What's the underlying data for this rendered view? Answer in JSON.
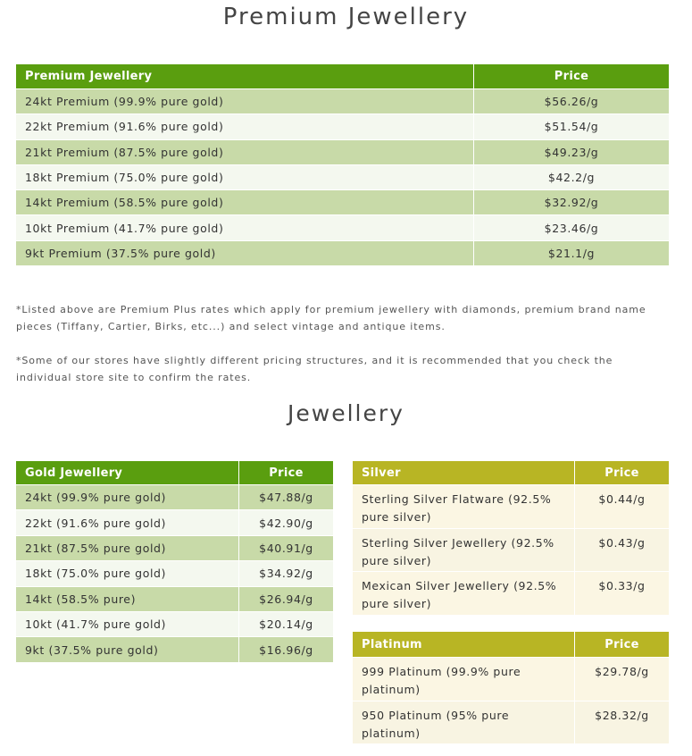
{
  "premium": {
    "title": "Premium Jewellery",
    "table": {
      "header": [
        "Premium Jewellery",
        "Price"
      ],
      "rows": [
        [
          "24kt Premium (99.9% pure gold)",
          "$56.26/g"
        ],
        [
          "22kt Premium (91.6% pure gold)",
          "$51.54/g"
        ],
        [
          "21kt Premium (87.5% pure gold)",
          "$49.23/g"
        ],
        [
          "18kt Premium (75.0% pure gold)",
          "$42.2/g"
        ],
        [
          "14kt Premium (58.5% pure gold)",
          "$32.92/g"
        ],
        [
          "10kt Premium (41.7% pure gold)",
          "$23.46/g"
        ],
        [
          "9kt Premium (37.5% pure gold)",
          "$21.1/g"
        ]
      ]
    }
  },
  "notes": [
    "*Listed above are Premium Plus rates which apply for premium jewellery with diamonds, premium brand name pieces (Tiffany, Cartier, Birks, etc...) and select vintage and antique items.",
    "*Some of our stores have slightly different pricing structures, and it is recommended that you check the individual store site to confirm the rates."
  ],
  "jewellery": {
    "title": "Jewellery",
    "gold": {
      "header": [
        "Gold Jewellery",
        "Price"
      ],
      "rows": [
        [
          "24kt (99.9% pure gold)",
          "$47.88/g"
        ],
        [
          "22kt (91.6% pure gold)",
          "$42.90/g"
        ],
        [
          "21kt (87.5% pure gold)",
          "$40.91/g"
        ],
        [
          "18kt (75.0% pure gold)",
          "$34.92/g"
        ],
        [
          "14kt (58.5% pure)",
          "$26.94/g"
        ],
        [
          "10kt (41.7% pure gold)",
          "$20.14/g"
        ],
        [
          "9kt (37.5% pure gold)",
          "$16.96/g"
        ]
      ]
    },
    "silver": {
      "header": [
        "Silver",
        "Price"
      ],
      "rows": [
        [
          "Sterling Silver Flatware (92.5% pure silver)",
          "$0.44/g"
        ],
        [
          "Sterling Silver Jewellery (92.5% pure silver)",
          "$0.43/g"
        ],
        [
          "Mexican Silver Jewellery (92.5% pure silver)",
          "$0.33/g"
        ]
      ]
    },
    "platinum": {
      "header": [
        "Platinum",
        "Price"
      ],
      "rows": [
        [
          "999 Platinum (99.9% pure platinum)",
          "$29.78/g"
        ],
        [
          "950 Platinum (95% pure platinum)",
          "$28.32/g"
        ]
      ]
    }
  }
}
